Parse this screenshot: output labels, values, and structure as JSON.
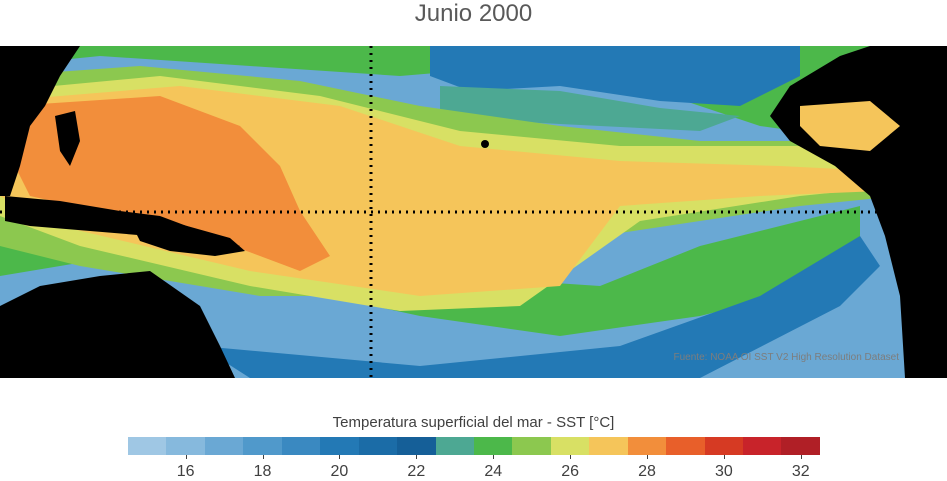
{
  "title": "Junio 2000",
  "credit": "Fuente: NOAA OI SST V2 High Resolution Dataset",
  "colorbar": {
    "label": "Temperatura superficial del mar - SST  [°C]",
    "min": 15,
    "max": 33,
    "step": 1,
    "tick_labels": [
      "16",
      "18",
      "20",
      "22",
      "24",
      "26",
      "28",
      "30",
      "32"
    ],
    "colors": [
      "#9fc7e4",
      "#86b9dd",
      "#6aa8d4",
      "#5099cb",
      "#3a89c1",
      "#2379b5",
      "#1b6ca7",
      "#155f98",
      "#4da893",
      "#4cb84a",
      "#8cc84f",
      "#d8e064",
      "#f5c55a",
      "#f28e3b",
      "#e85f2a",
      "#d63a23",
      "#c8232a",
      "#b01f26"
    ]
  },
  "map_colors": {
    "land": "#000000",
    "ocean_warm_core": "#f28e3b",
    "ocean_warm": "#f5c55a",
    "ocean_mid": "#d8e064",
    "ocean_cool": "#8cc84f",
    "ocean_green": "#4cb84a",
    "ocean_teal": "#4da893",
    "ocean_blue": "#2379b5",
    "ocean_light_blue": "#6aa8d4",
    "ocean_pale": "#9fc7e4"
  }
}
